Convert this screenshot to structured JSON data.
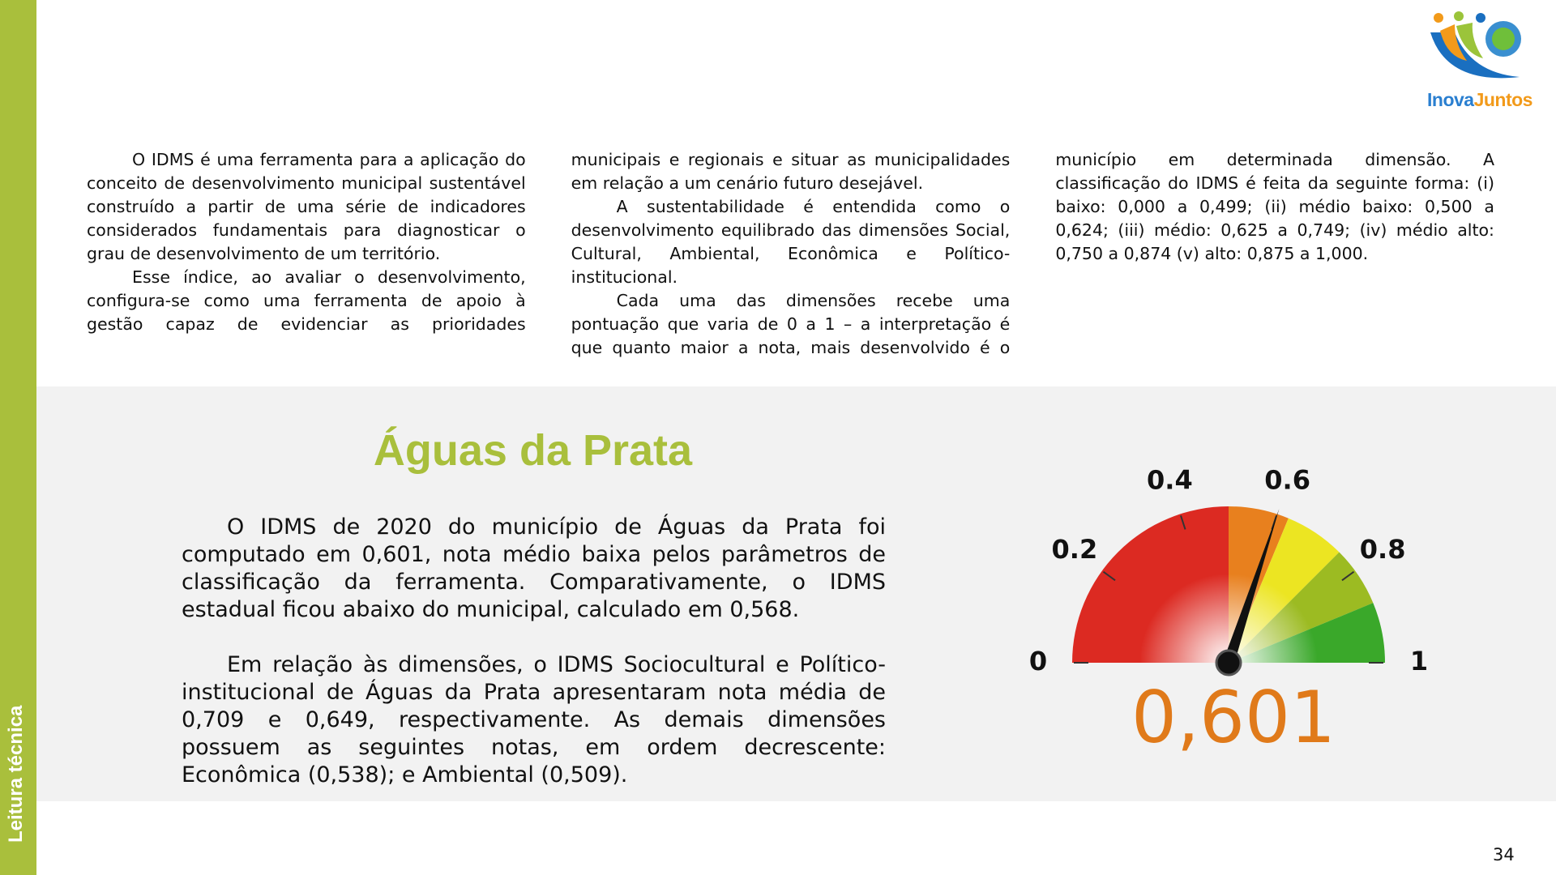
{
  "sidebar": {
    "label": "Leitura técnica"
  },
  "logo": {
    "parts": [
      "Inova",
      "Juntos"
    ]
  },
  "intro": {
    "paragraphs": [
      "O IDMS é uma ferramenta para a aplicação do conceito de desenvolvimento municipal sustentável construído a partir de uma série de indicadores considerados fundamentais para diagnosticar o grau de desenvolvimento de um território.",
      "Esse índice, ao avaliar o desenvolvimento, configura-se como uma ferramenta de apoio à gestão capaz de evidenciar as prioridades municipais e regionais e situar as municipalidades em relação a um cenário futuro desejável.",
      "A sustentabilidade é entendida como o desenvolvimento equilibrado das dimensões Social, Cultural, Ambiental, Econômica e Político-institucional.",
      "Cada uma das dimensões recebe uma pontuação que varia de 0 a 1 – a interpretação é que quanto maior a nota, mais desenvolvido é o município em determinada dimensão. A classificação do IDMS é feita da seguinte forma: (i) baixo: 0,000 a 0,499; (ii) médio baixo: 0,500 a 0,624; (iii) médio: 0,625 a 0,749; (iv) médio alto: 0,750 a 0,874 (v) alto: 0,875 a 1,000."
    ]
  },
  "section": {
    "title": "Águas da Prata",
    "paragraphs": [
      "O IDMS de 2020 do município de Águas da Prata foi computado em 0,601, nota médio baixa pelos parâmetros de classificação da ferramenta. Comparativamente, o IDMS estadual ficou abaixo do municipal, calculado em 0,568.",
      "Em relação às dimensões, o IDMS Sociocultural e Político-institucional de Águas da Prata apresentaram nota média de 0,709 e 0,649, respectivamente. As demais dimensões possuem as seguintes notas, em ordem decrescente: Econômica (0,538); e Ambiental (0,509)."
    ]
  },
  "chart_data": {
    "type": "gauge",
    "values": [
      0.601
    ],
    "value_labels": [
      "0,601"
    ],
    "color": "#e07a1a",
    "xlim": [
      0,
      1
    ],
    "xticks": [
      0,
      0.2,
      0.4,
      0.6,
      0.8,
      1
    ],
    "bands": [
      {
        "from": 0,
        "to": 0.5,
        "color": "#dc2a22"
      },
      {
        "from": 0.5,
        "to": 0.625,
        "color": "#e8801e"
      },
      {
        "from": 0.625,
        "to": 0.75,
        "color": "#ece522"
      },
      {
        "from": 0.75,
        "to": 0.875,
        "color": "#9cbb22"
      },
      {
        "from": 0.875,
        "to": 1,
        "color": "#3aa82a"
      }
    ]
  },
  "page_number": "34"
}
